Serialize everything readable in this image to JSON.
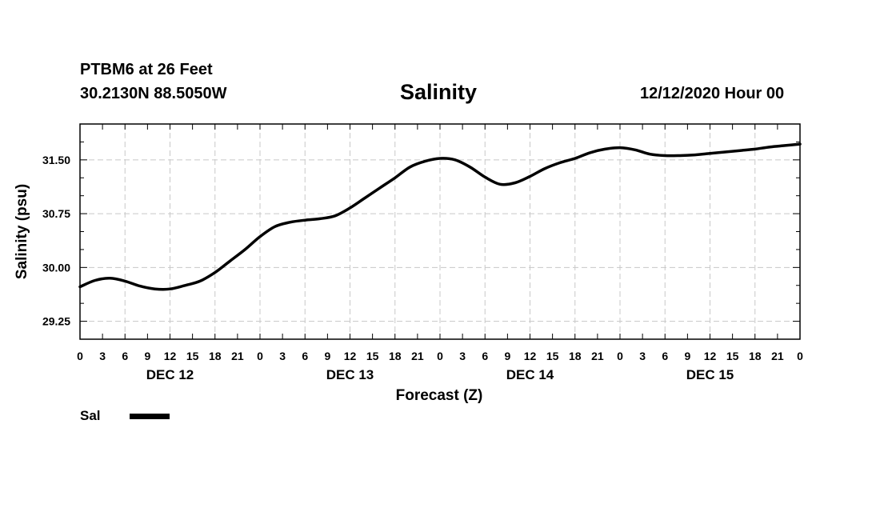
{
  "header": {
    "station": "PTBM6 at 26 Feet",
    "coords": "30.2130N 88.5050W",
    "title": "Salinity",
    "timestamp": "12/12/2020 Hour 00"
  },
  "legend": {
    "label": "Sal",
    "color": "#000000"
  },
  "chart_data": {
    "type": "line",
    "title": "Salinity",
    "xlabel": "Forecast (Z)",
    "ylabel": "Salinity (psu)",
    "xlim": [
      0,
      96
    ],
    "ylim": [
      29.0,
      32.0
    ],
    "yticks": [
      29.25,
      30.0,
      30.75,
      31.5
    ],
    "ytick_labels": [
      "29.25",
      "30.00",
      "30.75",
      "31.50"
    ],
    "xticks": [
      0,
      3,
      6,
      9,
      12,
      15,
      18,
      21,
      24,
      27,
      30,
      33,
      36,
      39,
      42,
      45,
      48,
      51,
      54,
      57,
      60,
      63,
      66,
      69,
      72,
      75,
      78,
      81,
      84,
      87,
      90,
      93,
      96
    ],
    "xtick_labels": [
      "0",
      "3",
      "6",
      "9",
      "12",
      "15",
      "18",
      "21",
      "0",
      "3",
      "6",
      "9",
      "12",
      "15",
      "18",
      "21",
      "0",
      "3",
      "6",
      "9",
      "12",
      "15",
      "18",
      "21",
      "0",
      "3",
      "6",
      "9",
      "12",
      "15",
      "18",
      "21",
      "0"
    ],
    "day_labels": [
      {
        "x": 12,
        "label": "DEC 12"
      },
      {
        "x": 36,
        "label": "DEC 13"
      },
      {
        "x": 60,
        "label": "DEC 14"
      },
      {
        "x": 84,
        "label": "DEC 15"
      }
    ],
    "grid": true,
    "series": [
      {
        "name": "Sal",
        "color": "#000000",
        "x": [
          0,
          2,
          4,
          6,
          8,
          10,
          12,
          14,
          16,
          18,
          20,
          22,
          24,
          26,
          28,
          30,
          32,
          34,
          36,
          38,
          40,
          42,
          44,
          46,
          48,
          50,
          52,
          54,
          56,
          58,
          60,
          62,
          64,
          66,
          68,
          70,
          72,
          74,
          76,
          78,
          80,
          82,
          84,
          86,
          88,
          90,
          92,
          94,
          96
        ],
        "values": [
          29.73,
          29.82,
          29.85,
          29.81,
          29.74,
          29.7,
          29.7,
          29.75,
          29.81,
          29.93,
          30.09,
          30.25,
          30.43,
          30.57,
          30.63,
          30.66,
          30.68,
          30.72,
          30.83,
          30.97,
          31.11,
          31.25,
          31.4,
          31.48,
          31.52,
          31.5,
          31.4,
          31.26,
          31.16,
          31.18,
          31.27,
          31.38,
          31.46,
          31.52,
          31.6,
          31.65,
          31.67,
          31.64,
          31.58,
          31.56,
          31.56,
          31.57,
          31.59,
          31.61,
          31.63,
          31.65,
          31.68,
          31.7,
          31.72
        ]
      }
    ]
  }
}
